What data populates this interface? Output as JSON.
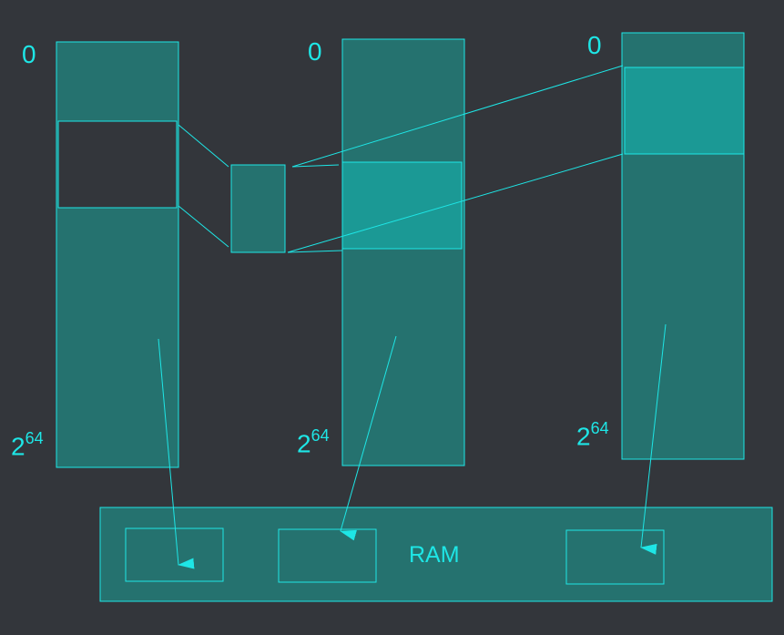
{
  "colors": {
    "background": "#33363b",
    "column_fill": "#25726f",
    "highlight_fill": "#1b9995",
    "hole_fill": "#33363b",
    "stroke": "#1ee6e6",
    "text": "#1ee6e6"
  },
  "address_spaces": [
    {
      "top_label": "0",
      "bottom_base": "2",
      "bottom_exp": "64"
    },
    {
      "top_label": "0",
      "bottom_base": "2",
      "bottom_exp": "64"
    },
    {
      "top_label": "0",
      "bottom_base": "2",
      "bottom_exp": "64"
    }
  ],
  "ram": {
    "label": "RAM"
  }
}
